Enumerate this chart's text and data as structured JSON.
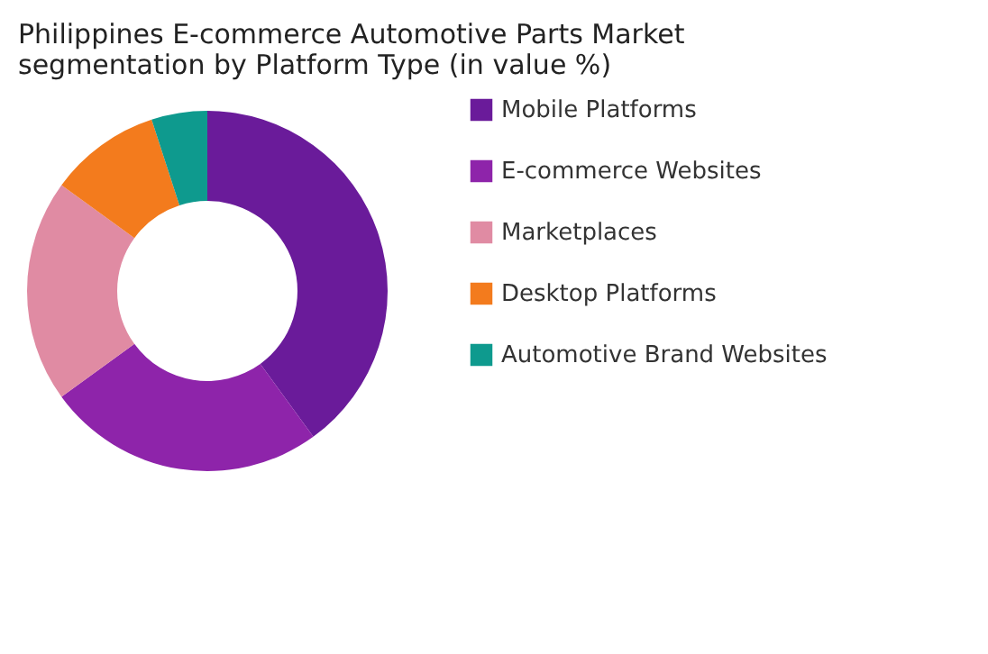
{
  "chart_data": {
    "type": "donut",
    "title": [
      "Philippines E-commerce Automotive Parts Market",
      "segmentation by Platform Type (in value %)"
    ],
    "categories": [
      "Mobile Platforms",
      "E-commerce Websites",
      "Marketplaces",
      "Desktop Platforms",
      "Automotive Brand Websites"
    ],
    "values": [
      40,
      25,
      20,
      10,
      5
    ],
    "colors": [
      "#6a1b9a",
      "#8e24aa",
      "#e08ba3",
      "#f37b1d",
      "#0e9a8e"
    ],
    "legend": "right"
  }
}
